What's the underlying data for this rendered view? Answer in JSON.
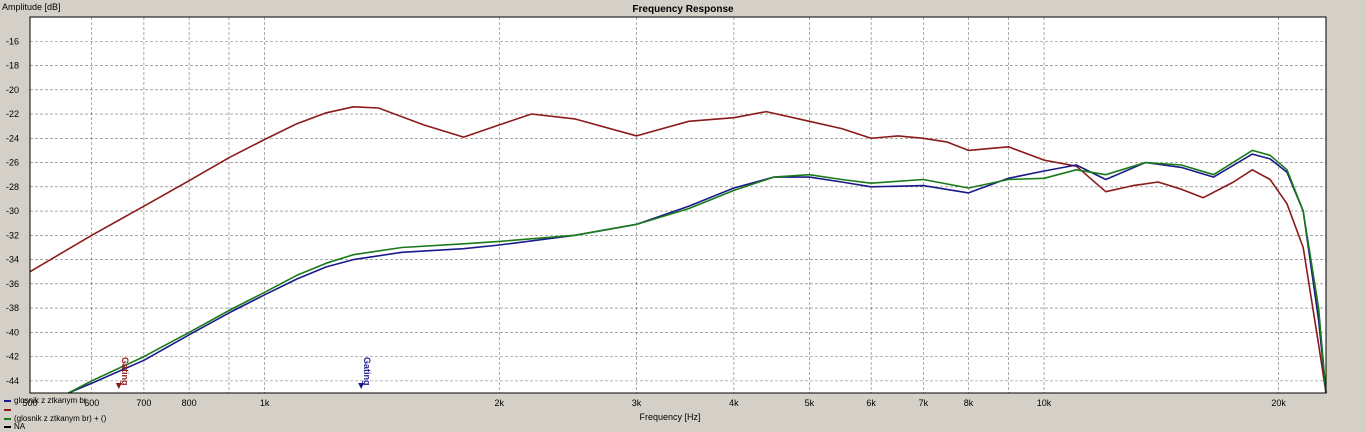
{
  "chart_data": {
    "type": "line",
    "title": "Frequency Response",
    "xlabel": "Frequency [Hz]",
    "ylabel": "Amplitude [dB]",
    "xscale": "log",
    "xlim": [
      500,
      23000
    ],
    "ylim": [
      -45,
      -14
    ],
    "grid": true,
    "x_tick_labels": [
      {
        "value": 500,
        "label": "500"
      },
      {
        "value": 600,
        "label": "600"
      },
      {
        "value": 700,
        "label": "700"
      },
      {
        "value": 800,
        "label": "800"
      },
      {
        "value": 1000,
        "label": "1k"
      },
      {
        "value": 2000,
        "label": "2k"
      },
      {
        "value": 3000,
        "label": "3k"
      },
      {
        "value": 4000,
        "label": "4k"
      },
      {
        "value": 5000,
        "label": "5k"
      },
      {
        "value": 6000,
        "label": "6k"
      },
      {
        "value": 7000,
        "label": "7k"
      },
      {
        "value": 8000,
        "label": "8k"
      },
      {
        "value": 10000,
        "label": "10k"
      },
      {
        "value": 20000,
        "label": "20k"
      }
    ],
    "x_grid": [
      500,
      600,
      700,
      800,
      900,
      1000,
      2000,
      3000,
      4000,
      5000,
      6000,
      7000,
      8000,
      9000,
      10000,
      20000
    ],
    "y_ticks": [
      -16,
      -18,
      -20,
      -22,
      -24,
      -26,
      -28,
      -30,
      -32,
      -34,
      -36,
      -38,
      -40,
      -42,
      -44
    ],
    "series": [
      {
        "name": "glosnik z ztkanym br",
        "color": "#1a1a8c",
        "points": [
          [
            560,
            -45
          ],
          [
            600,
            -44.2
          ],
          [
            700,
            -42.3
          ],
          [
            800,
            -40.2
          ],
          [
            900,
            -38.4
          ],
          [
            1000,
            -36.9
          ],
          [
            1100,
            -35.6
          ],
          [
            1200,
            -34.6
          ],
          [
            1300,
            -34.0
          ],
          [
            1500,
            -33.4
          ],
          [
            1800,
            -33.1
          ],
          [
            2000,
            -32.8
          ],
          [
            2500,
            -32.0
          ],
          [
            3000,
            -31.1
          ],
          [
            3500,
            -29.6
          ],
          [
            4000,
            -28.1
          ],
          [
            4500,
            -27.2
          ],
          [
            5000,
            -27.2
          ],
          [
            5500,
            -27.6
          ],
          [
            6000,
            -28.0
          ],
          [
            7000,
            -27.9
          ],
          [
            8000,
            -28.5
          ],
          [
            9000,
            -27.3
          ],
          [
            10000,
            -26.7
          ],
          [
            11000,
            -26.2
          ],
          [
            12000,
            -27.4
          ],
          [
            13500,
            -26.0
          ],
          [
            15000,
            -26.4
          ],
          [
            16500,
            -27.2
          ],
          [
            18500,
            -25.3
          ],
          [
            19500,
            -25.7
          ],
          [
            20500,
            -26.8
          ],
          [
            21500,
            -30.0
          ],
          [
            22500,
            -39.0
          ],
          [
            23000,
            -45
          ]
        ]
      },
      {
        "name": "",
        "color": "#8b1a1a",
        "points": [
          [
            500,
            -35.0
          ],
          [
            600,
            -32.0
          ],
          [
            700,
            -29.6
          ],
          [
            800,
            -27.5
          ],
          [
            900,
            -25.6
          ],
          [
            1000,
            -24.1
          ],
          [
            1100,
            -22.8
          ],
          [
            1200,
            -21.9
          ],
          [
            1300,
            -21.4
          ],
          [
            1400,
            -21.5
          ],
          [
            1600,
            -22.9
          ],
          [
            1800,
            -23.9
          ],
          [
            2000,
            -22.9
          ],
          [
            2200,
            -22.0
          ],
          [
            2500,
            -22.4
          ],
          [
            3000,
            -23.8
          ],
          [
            3500,
            -22.6
          ],
          [
            4000,
            -22.3
          ],
          [
            4400,
            -21.8
          ],
          [
            5000,
            -22.6
          ],
          [
            5500,
            -23.2
          ],
          [
            6000,
            -24.0
          ],
          [
            6500,
            -23.8
          ],
          [
            7000,
            -24.0
          ],
          [
            7500,
            -24.3
          ],
          [
            8000,
            -25.0
          ],
          [
            9000,
            -24.7
          ],
          [
            10000,
            -25.8
          ],
          [
            11000,
            -26.3
          ],
          [
            12000,
            -28.4
          ],
          [
            13000,
            -27.9
          ],
          [
            14000,
            -27.6
          ],
          [
            15000,
            -28.2
          ],
          [
            16000,
            -28.9
          ],
          [
            17500,
            -27.6
          ],
          [
            18500,
            -26.6
          ],
          [
            19500,
            -27.4
          ],
          [
            20500,
            -29.4
          ],
          [
            21500,
            -33.0
          ],
          [
            22500,
            -41.0
          ],
          [
            23000,
            -45
          ]
        ]
      },
      {
        "name": "(glosnik z ztkanym br) + ()",
        "color": "#1a7a1a",
        "points": [
          [
            560,
            -45
          ],
          [
            600,
            -44.0
          ],
          [
            700,
            -42.0
          ],
          [
            800,
            -40.0
          ],
          [
            900,
            -38.2
          ],
          [
            1000,
            -36.7
          ],
          [
            1100,
            -35.3
          ],
          [
            1200,
            -34.3
          ],
          [
            1300,
            -33.6
          ],
          [
            1500,
            -33.0
          ],
          [
            1800,
            -32.7
          ],
          [
            2000,
            -32.5
          ],
          [
            2500,
            -32.0
          ],
          [
            3000,
            -31.1
          ],
          [
            3500,
            -29.8
          ],
          [
            4000,
            -28.3
          ],
          [
            4500,
            -27.2
          ],
          [
            5000,
            -27.0
          ],
          [
            5500,
            -27.4
          ],
          [
            6000,
            -27.7
          ],
          [
            7000,
            -27.4
          ],
          [
            8000,
            -28.1
          ],
          [
            9000,
            -27.4
          ],
          [
            10000,
            -27.3
          ],
          [
            11000,
            -26.6
          ],
          [
            12000,
            -27.0
          ],
          [
            13500,
            -26.0
          ],
          [
            15000,
            -26.2
          ],
          [
            16500,
            -27.0
          ],
          [
            18500,
            -25.0
          ],
          [
            19500,
            -25.4
          ],
          [
            20500,
            -26.6
          ],
          [
            21500,
            -30.0
          ],
          [
            22500,
            -38.0
          ],
          [
            23000,
            -45
          ]
        ]
      }
    ],
    "legend": {
      "placement": "bottom-left",
      "entries": [
        {
          "label": "glosnik z ztkanym br",
          "color": "#1a1a8c"
        },
        {
          "label": "",
          "color": "#8b1a1a"
        },
        {
          "label": "(glosnik z ztkanym br) + ()",
          "color": "#1a7a1a"
        },
        {
          "label": "NA",
          "color": "#000000"
        }
      ]
    },
    "markers": [
      {
        "label": "Gating",
        "x": 650,
        "color": "#8b1a1a"
      },
      {
        "label": "Gating",
        "x": 1330,
        "color": "#1a1a8c"
      }
    ]
  }
}
